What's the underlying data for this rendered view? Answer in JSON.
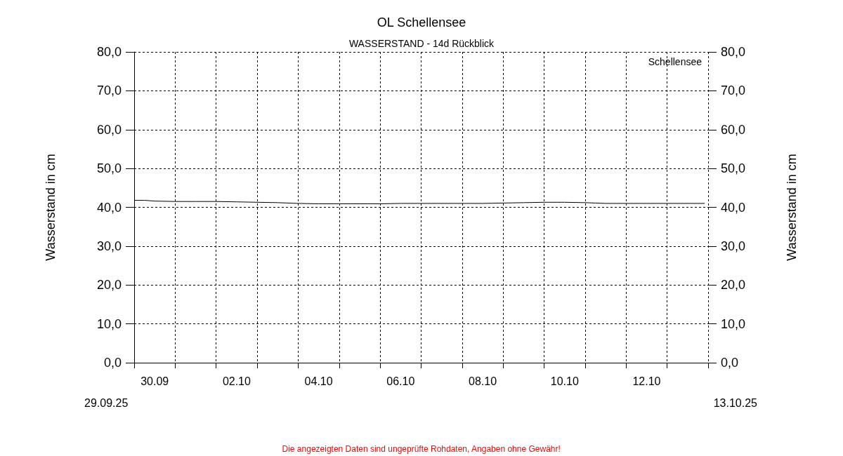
{
  "chart_data": {
    "type": "line",
    "title": "OL Schellensee",
    "subtitle": "WASSERSTAND - 14d Rückblick",
    "ylabel": "Wasserstand in cm",
    "y2label": "Wasserstand in cm",
    "annotations": [
      "29.09.25",
      "13.10.25",
      "Die angezeigten Daten sind ungeprüfte Rohdaten, Angaben ohne Gewähr!"
    ],
    "series": [
      {
        "name": "Schellensee",
        "color": "#000000",
        "x": [
          "--09-30T00:00",
          "--09-30T06:00",
          "--09-30T12:00",
          "--10-01T00:00",
          "--10-01T12:00",
          "--10-02T00:00",
          "--10-02T12:00",
          "--10-03T00:00",
          "--10-03T12:00",
          "--10-04T00:00",
          "--10-04T12:00",
          "--10-05T00:00",
          "--10-05T12:00",
          "--10-06T00:00",
          "--10-06T12:00",
          "--10-07T00:00",
          "--10-08T00:00",
          "--10-08T12:00",
          "--10-09T00:00",
          "--10-09T12:00",
          "--10-10T00:00",
          "--10-10T12:00",
          "--10-11T00:00",
          "--10-11T06:00",
          "--10-11T12:00",
          "--10-12T00:00",
          "--10-13T00:00",
          "--10-13T22:00"
        ],
        "values": [
          41.8,
          41.8,
          41.6,
          41.5,
          41.5,
          41.5,
          41.4,
          41.3,
          41.2,
          41.0,
          40.9,
          40.9,
          40.9,
          40.9,
          41.0,
          41.0,
          41.0,
          41.0,
          41.1,
          41.2,
          41.3,
          41.3,
          41.2,
          41.1,
          41.0,
          41.0,
          41.0,
          41.0
        ]
      }
    ],
    "xlim": [
      "--09-30T00:00",
      "--10-14T00:00"
    ],
    "xticks": [
      {
        "value": "--09-30T00:00",
        "label": null
      },
      {
        "value": "--10-01T00:00",
        "label": null
      },
      {
        "value": "--10-02T00:00",
        "label": null
      },
      {
        "value": "--10-03T00:00",
        "label": null
      },
      {
        "value": "--10-04T00:00",
        "label": null
      },
      {
        "value": "--10-05T00:00",
        "label": null
      },
      {
        "value": "--10-06T00:00",
        "label": null
      },
      {
        "value": "--10-07T00:00",
        "label": null
      },
      {
        "value": "--10-08T00:00",
        "label": null
      },
      {
        "value": "--10-09T00:00",
        "label": null
      },
      {
        "value": "--10-10T00:00",
        "label": null
      },
      {
        "value": "--10-11T00:00",
        "label": null
      },
      {
        "value": "--10-12T00:00",
        "label": null
      },
      {
        "value": "--10-13T00:00",
        "label": null
      },
      {
        "value": "--10-14T00:00",
        "label": null
      },
      {
        "value": "--09-30T12:00",
        "label": "30.09"
      },
      {
        "value": "--10-02T12:00",
        "label": "02.10"
      },
      {
        "value": "--10-04T12:00",
        "label": "04.10"
      },
      {
        "value": "--10-06T12:00",
        "label": "06.10"
      },
      {
        "value": "--10-08T12:00",
        "label": "08.10"
      },
      {
        "value": "--10-10T12:00",
        "label": "10.10"
      },
      {
        "value": "--10-12T12:00",
        "label": "12.10"
      }
    ],
    "ylim": [
      0,
      80
    ],
    "yticks": [
      {
        "value": 0,
        "label": "0,0"
      },
      {
        "value": 10,
        "label": "10,0"
      },
      {
        "value": 20,
        "label": "20,0"
      },
      {
        "value": 30,
        "label": "30,0"
      },
      {
        "value": 40,
        "label": "40,0"
      },
      {
        "value": 50,
        "label": "50,0"
      },
      {
        "value": 60,
        "label": "60,0"
      },
      {
        "value": 70,
        "label": "70,0"
      },
      {
        "value": 80,
        "label": "80,0"
      }
    ],
    "y2lim": [
      0,
      80
    ],
    "y2ticks": [
      {
        "value": 0,
        "label": "0,0"
      },
      {
        "value": 10,
        "label": "10,0"
      },
      {
        "value": 20,
        "label": "20,0"
      },
      {
        "value": 30,
        "label": "30,0"
      },
      {
        "value": 40,
        "label": "40,0"
      },
      {
        "value": 50,
        "label": "50,0"
      },
      {
        "value": 60,
        "label": "60,0"
      },
      {
        "value": 70,
        "label": "70,0"
      },
      {
        "value": 80,
        "label": "80,0"
      }
    ],
    "grid": true,
    "legend": "top right",
    "marker": "none",
    "line_style": "solid"
  }
}
